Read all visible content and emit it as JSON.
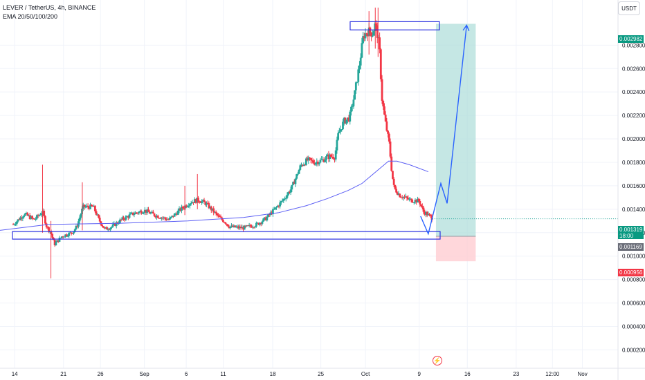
{
  "header": {
    "symbol_line": "LEVER / TetherUS, 4h, BINANCE",
    "indicator_line": "EMA 20/50/100/200"
  },
  "currency_button": "USDT",
  "colors": {
    "up": "#26a69a",
    "down": "#f23645",
    "ema": "#5b5ef4",
    "drawing": "#2a2fe0",
    "arrow": "#2962ff",
    "profit_zone": "#b2dfdb",
    "loss_zone": "#ffcdd2",
    "grid": "#f0f3fa",
    "price_line": "#26a69a"
  },
  "price_flags": {
    "target": "0.002982",
    "current": "0.001319",
    "countdown": "18:00",
    "entry": "0.001169",
    "stop": "0.000956"
  },
  "chart_data": {
    "type": "candlestick",
    "title": "LEVER / TetherUS, 4h, BINANCE",
    "indicators": [
      "EMA 20/50/100/200"
    ],
    "y_axis": {
      "side": "right",
      "ticks": [
        "0.002800",
        "0.002600",
        "0.002400",
        "0.002200",
        "0.002000",
        "0.001800",
        "0.001600",
        "0.001400",
        "0.001200",
        "0.001000",
        "0.000800",
        "0.000600",
        "0.000400",
        "0.000200"
      ],
      "tick_values": [
        0.0028,
        0.0026,
        0.0024,
        0.0022,
        0.002,
        0.0018,
        0.0016,
        0.0014,
        0.0012,
        0.001,
        0.0008,
        0.0006,
        0.0004,
        0.0002
      ],
      "ylim": [
        0.00012,
        0.00302
      ]
    },
    "x_axis": {
      "labels": [
        "14",
        "21",
        "26",
        "Sep",
        "6",
        "11",
        "18",
        "25",
        "Oct",
        "9",
        "16",
        "23",
        "12:00",
        "Nov"
      ],
      "label_pos": [
        0.2,
        7.2,
        12.5,
        18.8,
        24.8,
        30.1,
        37.2,
        44.1,
        50.5,
        58.2,
        65.1,
        72.1,
        77.3,
        81.6
      ],
      "xlim": [
        -1.9,
        86.7
      ]
    },
    "price_path": [
      [
        0.0,
        0.00127
      ],
      [
        1.6,
        0.00136
      ],
      [
        3.0,
        0.00131
      ],
      [
        4.2,
        0.00138
      ],
      [
        4.8,
        0.00125
      ],
      [
        5.4,
        0.0012
      ],
      [
        5.9,
        0.0011
      ],
      [
        7.0,
        0.00117
      ],
      [
        8.4,
        0.0012
      ],
      [
        9.1,
        0.00125
      ],
      [
        10.0,
        0.00142
      ],
      [
        11.5,
        0.00142
      ],
      [
        12.2,
        0.00132
      ],
      [
        13.1,
        0.00123
      ],
      [
        14.1,
        0.00125
      ],
      [
        15.5,
        0.00131
      ],
      [
        17.1,
        0.00136
      ],
      [
        18.8,
        0.00139
      ],
      [
        20.3,
        0.00135
      ],
      [
        22.3,
        0.00131
      ],
      [
        24.0,
        0.0014
      ],
      [
        25.4,
        0.00146
      ],
      [
        26.5,
        0.00148
      ],
      [
        27.6,
        0.00145
      ],
      [
        28.4,
        0.0014
      ],
      [
        29.5,
        0.00133
      ],
      [
        30.4,
        0.00129
      ],
      [
        31.0,
        0.00125
      ],
      [
        33.0,
        0.00124
      ],
      [
        34.9,
        0.00127
      ],
      [
        36.2,
        0.00132
      ],
      [
        37.5,
        0.0014
      ],
      [
        38.7,
        0.00148
      ],
      [
        39.9,
        0.00158
      ],
      [
        41.2,
        0.00177
      ],
      [
        42.2,
        0.00182
      ],
      [
        43.2,
        0.0018
      ],
      [
        44.4,
        0.00182
      ],
      [
        45.1,
        0.00185
      ],
      [
        46.1,
        0.00185
      ],
      [
        46.6,
        0.00204
      ],
      [
        47.4,
        0.00215
      ],
      [
        48.2,
        0.00218
      ],
      [
        48.9,
        0.00237
      ],
      [
        49.6,
        0.00262
      ],
      [
        50.2,
        0.00288
      ],
      [
        50.9,
        0.00292
      ],
      [
        51.5,
        0.0029
      ],
      [
        51.9,
        0.00298
      ],
      [
        52.3,
        0.00286
      ],
      [
        52.6,
        0.0027
      ],
      [
        52.8,
        0.00237
      ],
      [
        53.3,
        0.00216
      ],
      [
        53.9,
        0.00196
      ],
      [
        54.3,
        0.0017
      ],
      [
        54.6,
        0.00158
      ],
      [
        55.4,
        0.00152
      ],
      [
        56.8,
        0.00148
      ],
      [
        58.2,
        0.00147
      ],
      [
        58.8,
        0.00138
      ],
      [
        59.5,
        0.00135
      ],
      [
        60.1,
        0.00132
      ]
    ],
    "ema": [
      [
        -1.9,
        0.00122
      ],
      [
        5.0,
        0.00127
      ],
      [
        15.0,
        0.00128
      ],
      [
        25.0,
        0.0013
      ],
      [
        33.0,
        0.00133
      ],
      [
        38.0,
        0.00137
      ],
      [
        42.0,
        0.00143
      ],
      [
        45.0,
        0.00149
      ],
      [
        48.0,
        0.00156
      ],
      [
        50.0,
        0.00162
      ],
      [
        52.0,
        0.00172
      ],
      [
        53.8,
        0.00181
      ],
      [
        55.0,
        0.00181
      ],
      [
        56.8,
        0.00178
      ],
      [
        59.5,
        0.00172
      ]
    ],
    "spikes": [
      {
        "x": 4.2,
        "high": 0.00178,
        "low": 0.0012
      },
      {
        "x": 5.4,
        "high": 0.0013,
        "low": 0.00081
      },
      {
        "x": 9.9,
        "high": 0.00163,
        "low": 0.00122
      },
      {
        "x": 24.6,
        "high": 0.0016,
        "low": 0.00135
      },
      {
        "x": 26.4,
        "high": 0.0017,
        "low": 0.0014
      },
      {
        "x": 51.0,
        "high": 0.00309,
        "low": 0.00272
      },
      {
        "x": 51.9,
        "high": 0.00312,
        "low": 0.00277
      },
      {
        "x": 52.3,
        "high": 0.00312,
        "low": 0.0027
      }
    ],
    "zones": {
      "resistance_box": {
        "x0": 48.3,
        "x1": 61.1,
        "y0": 0.00293,
        "y1": 0.003
      },
      "support_box": {
        "x0": -1.9,
        "x1": 61.2,
        "y0": 0.001145,
        "y1": 0.00121
      },
      "long_position": {
        "x0": 60.6,
        "x1": 66.3,
        "entry": 0.001169,
        "target": 0.002982,
        "stop": 0.000956
      }
    },
    "projection_path": [
      [
        58.4,
        0.00134
      ],
      [
        59.5,
        0.00119
      ],
      [
        61.3,
        0.00162
      ],
      [
        62.2,
        0.00145
      ],
      [
        65.0,
        0.00297
      ]
    ],
    "last_price": 0.001319,
    "grid": true
  }
}
